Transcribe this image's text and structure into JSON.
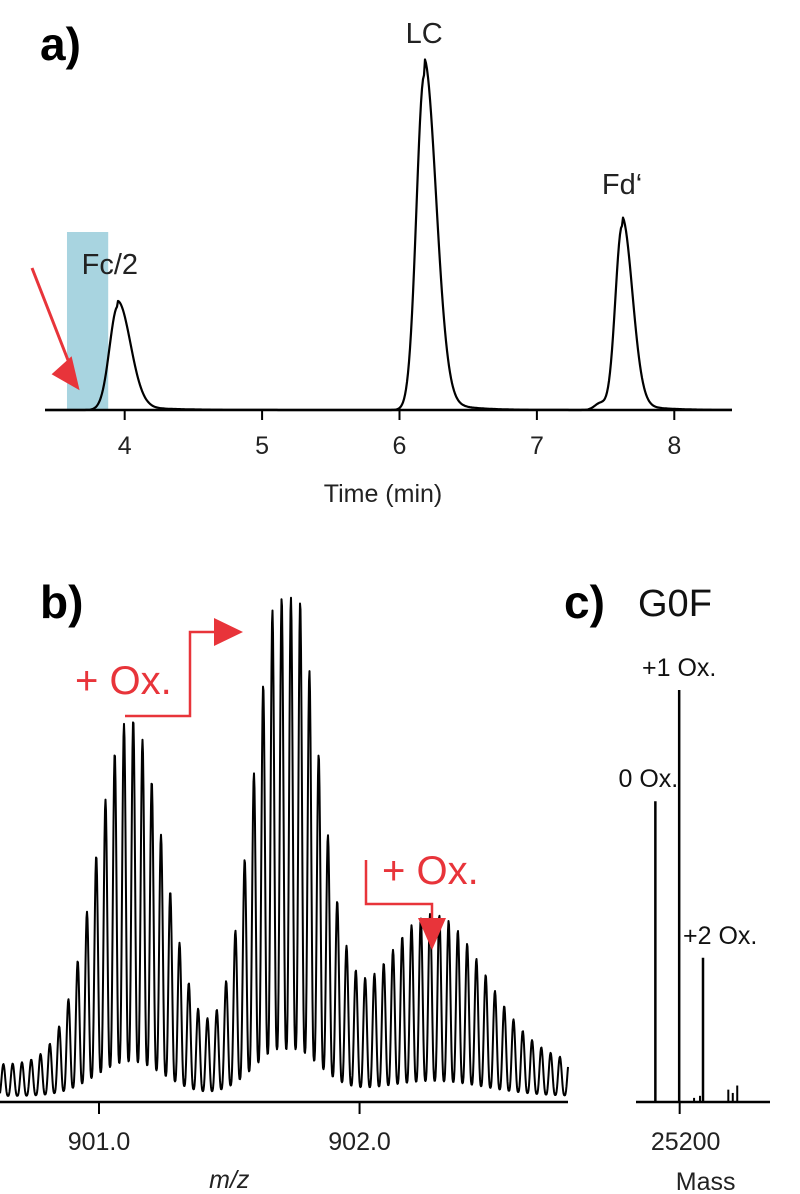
{
  "colors": {
    "trace": "#000000",
    "annotation": "#e8343a",
    "highlight": "#a8d4e0"
  },
  "chart_data": [
    {
      "type": "line",
      "panel": "a)",
      "xlabel": "Time (min)",
      "xlim": [
        3.42,
        8.42
      ],
      "ylim": [
        0,
        1.0
      ],
      "xticks": [
        4,
        5,
        6,
        7,
        8
      ],
      "xtick_labels": [
        "4",
        "5",
        "6",
        "7",
        "8"
      ],
      "highlight_range": [
        3.58,
        3.88
      ],
      "arrow_target": [
        3.73,
        0.05
      ],
      "peaks": [
        {
          "label": "Fc/2",
          "center": 3.95,
          "height": 0.31,
          "width": 0.08,
          "tail": 0.25
        },
        {
          "label": "LC",
          "center": 6.18,
          "height": 1.0,
          "width": 0.075,
          "tail": 0.18
        },
        {
          "label": "Fd‘",
          "center": 7.62,
          "height": 0.55,
          "width": 0.065,
          "tail": 0.18
        }
      ],
      "minor_peaks": [
        {
          "center": 7.46,
          "height": 0.02,
          "width": 0.04
        }
      ]
    },
    {
      "type": "line",
      "panel": "b)",
      "xlabel": "m/z",
      "xlim": [
        900.62,
        902.8
      ],
      "ylim": [
        0,
        1.0
      ],
      "xticks": [
        901.0,
        902.0
      ],
      "xtick_labels": [
        "901.0",
        "902.0"
      ],
      "isotope_spacing": 0.0356,
      "envelopes": [
        {
          "center": 901.12,
          "height": 0.69,
          "width": 0.13
        },
        {
          "center": 901.72,
          "height": 1.0,
          "width": 0.12
        },
        {
          "center": 902.28,
          "height": 0.3,
          "width": 0.2
        }
      ],
      "annotations": [
        {
          "text": "+ Ox.",
          "from_peak": 0,
          "to_peak": 1
        },
        {
          "text": "+ Ox.",
          "from_peak": 1,
          "to_peak": 2
        }
      ]
    },
    {
      "type": "bar",
      "panel": "c)",
      "title": "G0F",
      "xlabel": "Mass",
      "xlim": [
        25170,
        25260
      ],
      "ylim": [
        0,
        1.0
      ],
      "xticks": [
        25200
      ],
      "xtick_labels": [
        "25200"
      ],
      "bars": [
        {
          "x": 25183,
          "value": 0.73,
          "label": "0 Ox."
        },
        {
          "x": 25199,
          "value": 1.0,
          "label": "+1 Ox."
        },
        {
          "x": 25215,
          "value": 0.35,
          "label": "+2 Ox."
        },
        {
          "x": 25209,
          "value": 0.01,
          "label": ""
        },
        {
          "x": 25213,
          "value": 0.015,
          "label": ""
        },
        {
          "x": 25232,
          "value": 0.03,
          "label": ""
        },
        {
          "x": 25235,
          "value": 0.022,
          "label": ""
        },
        {
          "x": 25238,
          "value": 0.04,
          "label": ""
        }
      ]
    }
  ]
}
